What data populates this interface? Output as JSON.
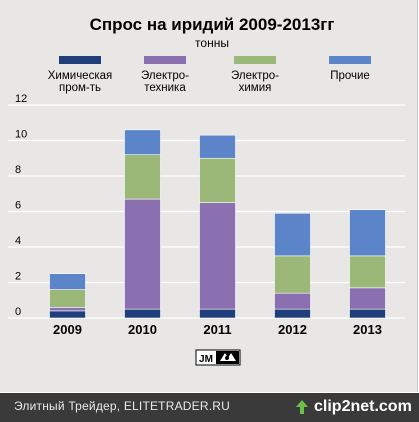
{
  "chart_data": {
    "type": "bar",
    "stacked": true,
    "title": "Спрос на иридий 2009-2013гг",
    "subtitle": "тонны",
    "categories": [
      "2009",
      "2010",
      "2011",
      "2012",
      "2013"
    ],
    "ylim": [
      0,
      12
    ],
    "yticks": [
      0,
      2,
      4,
      6,
      8,
      10,
      12
    ],
    "grid": true,
    "legend_placement": "top",
    "series": [
      {
        "name": "Химическая пром-ть",
        "color": "#1f3f7a",
        "values": [
          0.4,
          0.5,
          0.5,
          0.5,
          0.5
        ]
      },
      {
        "name": "Электро-техника",
        "color": "#8a70b0",
        "values": [
          0.2,
          6.2,
          6.0,
          0.9,
          1.2
        ]
      },
      {
        "name": "Электро-химия",
        "color": "#9cb878",
        "values": [
          1.0,
          2.5,
          2.5,
          2.1,
          1.8
        ]
      },
      {
        "name": "Прочие",
        "color": "#5b85c8",
        "values": [
          0.9,
          1.4,
          1.3,
          2.4,
          2.6
        ]
      }
    ]
  },
  "logo": {
    "label": "JM",
    "color": "#000000"
  },
  "footer": {
    "source_text": "Элитный Трейдер, ELITETRADER.RU",
    "watermark": "clip2net.com",
    "bar_color": "#3a3a3a"
  }
}
